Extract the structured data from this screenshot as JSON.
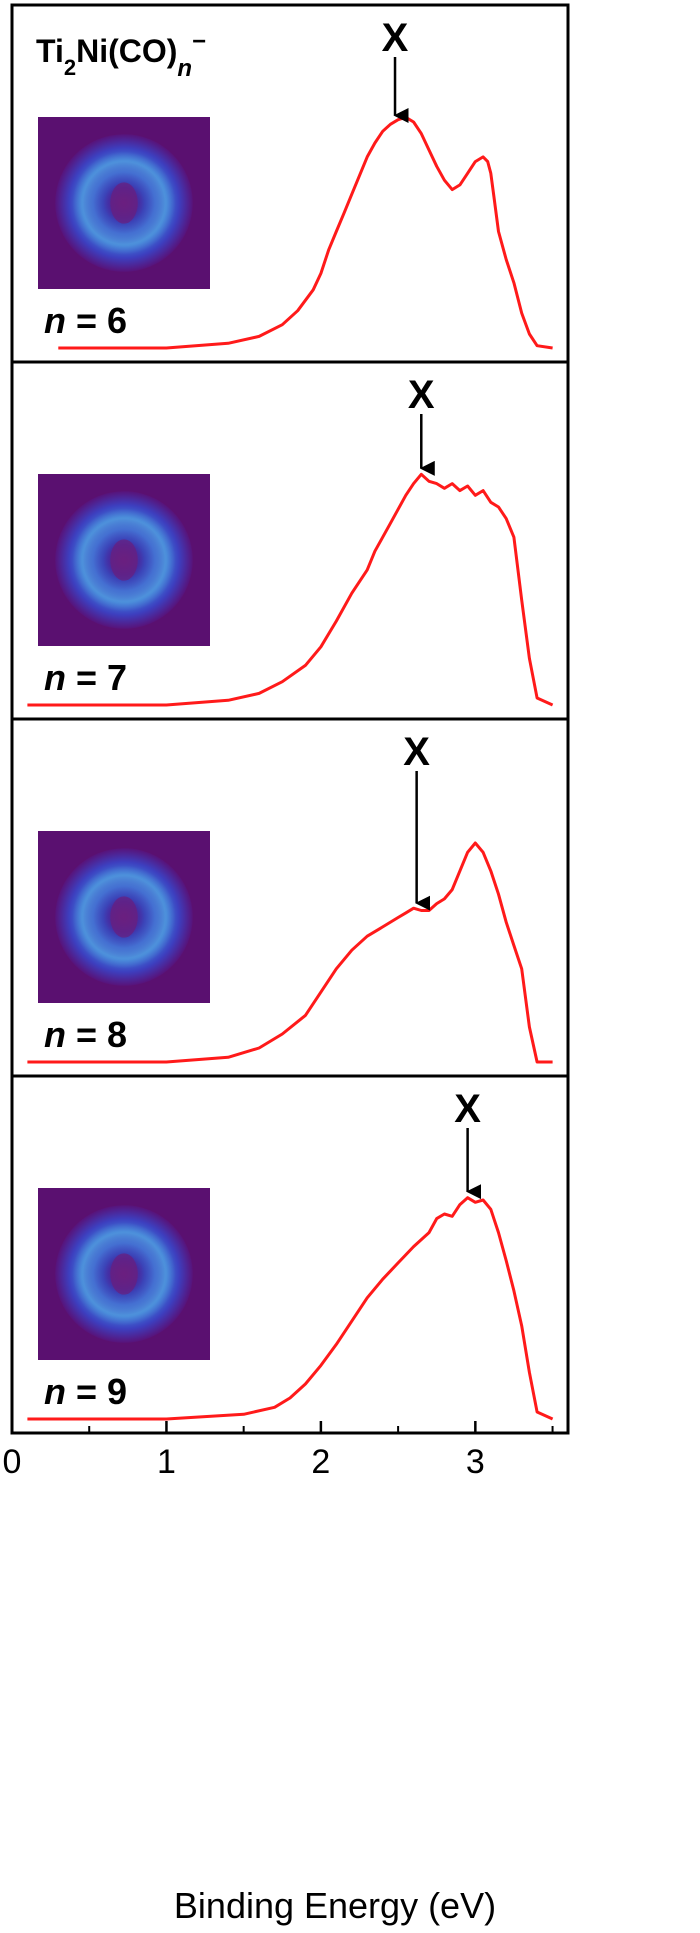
{
  "chart_data": {
    "type": "line",
    "title": "",
    "species_label": {
      "main": "Ti",
      "sub1": "2",
      "mid": "Ni(CO)",
      "sub2": "n",
      "sup": "−"
    },
    "xlabel": "Binding Energy (eV)",
    "ylabel": "",
    "xlim": [
      0,
      3.6
    ],
    "x_major_ticks": [
      0,
      1,
      2,
      3
    ],
    "x_major_tick_labels": [
      "0",
      "1",
      "2",
      "3"
    ],
    "x_minor_ticks": [
      0.5,
      1.5,
      2.5,
      3.5
    ],
    "grid": false,
    "line_color": "#ff1a1a",
    "panels": [
      {
        "n_label": "n",
        "n_value": "= 6",
        "peak_label": "X",
        "peak_x": 2.48,
        "image": "photoelectron-image",
        "series": [
          {
            "x": [
              0.3,
              1.0,
              1.4,
              1.6,
              1.75,
              1.85,
              1.95,
              2.0,
              2.05,
              2.1,
              2.15,
              2.2,
              2.25,
              2.3,
              2.35,
              2.4,
              2.45,
              2.5,
              2.55,
              2.6,
              2.65,
              2.7,
              2.75,
              2.8,
              2.85,
              2.9,
              2.95,
              3.0,
              3.05,
              3.08,
              3.1,
              3.12,
              3.15,
              3.2,
              3.25,
              3.3,
              3.35,
              3.4,
              3.5
            ],
            "y": [
              0.0,
              0.0,
              0.02,
              0.05,
              0.1,
              0.16,
              0.25,
              0.32,
              0.42,
              0.5,
              0.58,
              0.66,
              0.74,
              0.82,
              0.88,
              0.93,
              0.96,
              0.98,
              0.99,
              0.97,
              0.92,
              0.85,
              0.78,
              0.72,
              0.68,
              0.7,
              0.75,
              0.8,
              0.82,
              0.8,
              0.75,
              0.65,
              0.5,
              0.38,
              0.28,
              0.15,
              0.06,
              0.01,
              0.0
            ]
          }
        ]
      },
      {
        "n_label": "n",
        "n_value": "= 7",
        "peak_label": "X",
        "peak_x": 2.65,
        "image": "photoelectron-image",
        "series": [
          {
            "x": [
              0.1,
              1.0,
              1.4,
              1.6,
              1.75,
              1.9,
              2.0,
              2.1,
              2.2,
              2.3,
              2.35,
              2.4,
              2.45,
              2.5,
              2.55,
              2.6,
              2.65,
              2.7,
              2.75,
              2.8,
              2.85,
              2.9,
              2.95,
              3.0,
              3.05,
              3.1,
              3.15,
              3.2,
              3.25,
              3.3,
              3.35,
              3.4,
              3.5
            ],
            "y": [
              0.0,
              0.0,
              0.02,
              0.05,
              0.1,
              0.17,
              0.25,
              0.36,
              0.48,
              0.58,
              0.66,
              0.72,
              0.78,
              0.84,
              0.9,
              0.95,
              0.99,
              0.96,
              0.95,
              0.93,
              0.95,
              0.92,
              0.94,
              0.9,
              0.92,
              0.87,
              0.85,
              0.8,
              0.72,
              0.45,
              0.2,
              0.03,
              0.0
            ]
          }
        ]
      },
      {
        "n_label": "n",
        "n_value": "= 8",
        "peak_label": "X",
        "peak_x": 2.62,
        "image": "photoelectron-image",
        "series": [
          {
            "x": [
              0.1,
              1.0,
              1.4,
              1.6,
              1.75,
              1.9,
              2.0,
              2.1,
              2.2,
              2.3,
              2.4,
              2.5,
              2.55,
              2.6,
              2.65,
              2.7,
              2.75,
              2.8,
              2.85,
              2.9,
              2.95,
              3.0,
              3.05,
              3.1,
              3.15,
              3.2,
              3.25,
              3.3,
              3.35,
              3.4,
              3.5
            ],
            "y": [
              0.0,
              0.0,
              0.02,
              0.06,
              0.12,
              0.2,
              0.3,
              0.4,
              0.48,
              0.54,
              0.58,
              0.62,
              0.64,
              0.66,
              0.65,
              0.65,
              0.68,
              0.7,
              0.74,
              0.82,
              0.9,
              0.94,
              0.9,
              0.82,
              0.72,
              0.6,
              0.5,
              0.4,
              0.15,
              0.0,
              0.0
            ]
          }
        ]
      },
      {
        "n_label": "n",
        "n_value": "= 9",
        "peak_label": "X",
        "peak_x": 2.95,
        "image": "photoelectron-image",
        "series": [
          {
            "x": [
              0.1,
              1.0,
              1.5,
              1.7,
              1.8,
              1.9,
              2.0,
              2.1,
              2.2,
              2.3,
              2.4,
              2.5,
              2.6,
              2.7,
              2.75,
              2.8,
              2.85,
              2.9,
              2.95,
              3.0,
              3.05,
              3.1,
              3.15,
              3.2,
              3.25,
              3.3,
              3.35,
              3.4,
              3.5
            ],
            "y": [
              0.0,
              0.0,
              0.02,
              0.05,
              0.09,
              0.15,
              0.23,
              0.32,
              0.42,
              0.52,
              0.6,
              0.67,
              0.74,
              0.8,
              0.86,
              0.88,
              0.87,
              0.92,
              0.95,
              0.93,
              0.94,
              0.9,
              0.8,
              0.68,
              0.55,
              0.4,
              0.2,
              0.03,
              0.0
            ]
          }
        ]
      }
    ]
  }
}
